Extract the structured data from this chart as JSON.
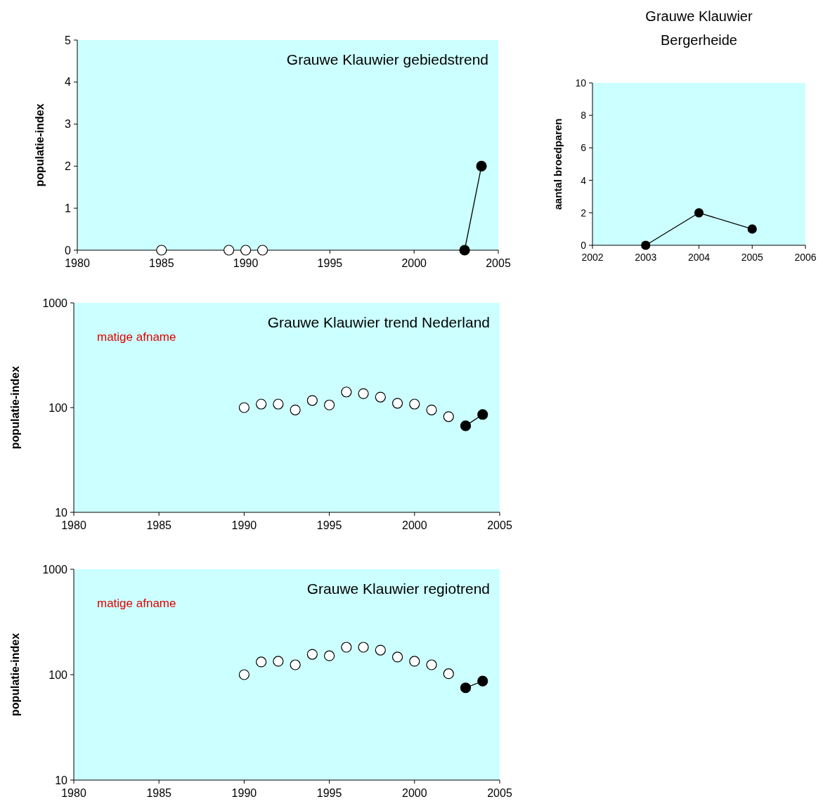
{
  "chart_data": [
    {
      "type": "line",
      "title": "Grauwe Klauwier gebiedstrend",
      "ylabel": "populatie-index",
      "xlim": [
        1980,
        2005
      ],
      "xticks": [
        1980,
        1985,
        1990,
        1995,
        2000,
        2005
      ],
      "ylim": [
        0,
        5
      ],
      "yticks": [
        0,
        1,
        2,
        3,
        4,
        5
      ],
      "marker": "circle",
      "line_style": "solid",
      "series": [
        {
          "type": "scatter",
          "color": "#ffffff",
          "x": [
            1985,
            1989,
            1990,
            1991
          ],
          "values": [
            0,
            0,
            0,
            0
          ]
        },
        {
          "type": "line",
          "color": "#000000",
          "x": [
            2003,
            2004
          ],
          "values": [
            0,
            2
          ]
        }
      ]
    },
    {
      "type": "line",
      "title": "Grauwe Klauwier trend Nederland",
      "ylabel": "populatie-index",
      "annotations": [
        "matige afname"
      ],
      "log": true,
      "xlim": [
        1980,
        2005
      ],
      "xticks": [
        1980,
        1985,
        1990,
        1995,
        2000,
        2005
      ],
      "ylim": [
        10,
        1000
      ],
      "yticks": [
        10,
        100,
        1000
      ],
      "marker": "circle",
      "line_style": "solid",
      "series": [
        {
          "type": "scatter",
          "color": "#ffffff",
          "x": [
            1990,
            1991,
            1992,
            1993,
            1994,
            1995,
            1996,
            1997,
            1998,
            1999,
            2000,
            2001,
            2002
          ],
          "values": [
            100,
            108,
            108,
            95,
            117,
            106,
            141,
            136,
            126,
            110,
            108,
            95,
            82
          ]
        },
        {
          "type": "line",
          "color": "#000000",
          "x": [
            2003,
            2004
          ],
          "values": [
            67,
            86
          ]
        }
      ]
    },
    {
      "type": "line",
      "title": "Grauwe Klauwier regiotrend",
      "ylabel": "populatie-index",
      "annotations": [
        "matige afname"
      ],
      "log": true,
      "xlim": [
        1980,
        2005
      ],
      "xticks": [
        1980,
        1985,
        1990,
        1995,
        2000,
        2005
      ],
      "ylim": [
        10,
        1000
      ],
      "yticks": [
        10,
        100,
        1000
      ],
      "marker": "circle",
      "line_style": "solid",
      "series": [
        {
          "type": "scatter",
          "color": "#ffffff",
          "x": [
            1990,
            1991,
            1992,
            1993,
            1994,
            1995,
            1996,
            1997,
            1998,
            1999,
            2000,
            2001,
            2002
          ],
          "values": [
            100,
            132,
            134,
            124,
            156,
            151,
            182,
            182,
            171,
            147,
            134,
            124,
            102
          ]
        },
        {
          "type": "line",
          "color": "#000000",
          "x": [
            2003,
            2004
          ],
          "values": [
            75,
            87
          ]
        }
      ]
    },
    {
      "type": "line",
      "title": "Grauwe Klauwier Bergerheide",
      "ylabel": "aantal broedparen",
      "xlim": [
        2002,
        2006
      ],
      "xticks": [
        2002,
        2003,
        2004,
        2005,
        2006
      ],
      "ylim": [
        0,
        10
      ],
      "yticks": [
        0,
        2,
        4,
        6,
        8,
        10
      ],
      "marker": "circle",
      "line_style": "solid",
      "series": [
        {
          "type": "line",
          "color": "#000000",
          "x": [
            2003,
            2004,
            2005
          ],
          "values": [
            0,
            2,
            1
          ]
        }
      ]
    }
  ]
}
